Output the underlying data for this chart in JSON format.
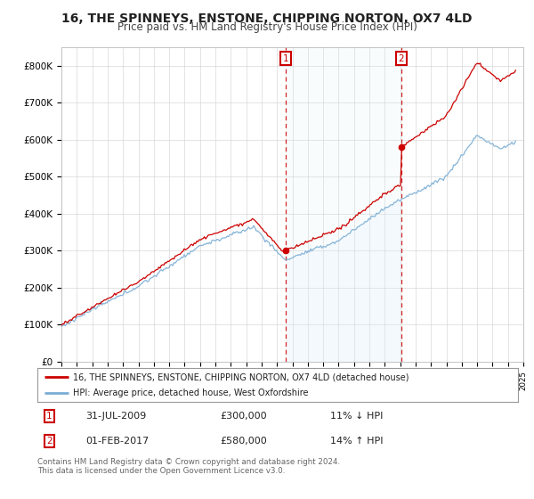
{
  "title": "16, THE SPINNEYS, ENSTONE, CHIPPING NORTON, OX7 4LD",
  "subtitle": "Price paid vs. HM Land Registry's House Price Index (HPI)",
  "legend_line1": "16, THE SPINNEYS, ENSTONE, CHIPPING NORTON, OX7 4LD (detached house)",
  "legend_line2": "HPI: Average price, detached house, West Oxfordshire",
  "annotation1_date": "31-JUL-2009",
  "annotation1_price": "£300,000",
  "annotation1_hpi": "11% ↓ HPI",
  "annotation2_date": "01-FEB-2017",
  "annotation2_price": "£580,000",
  "annotation2_hpi": "14% ↑ HPI",
  "footer": "Contains HM Land Registry data © Crown copyright and database right 2024.\nThis data is licensed under the Open Government Licence v3.0.",
  "line_color_property": "#cc0000",
  "line_color_hpi": "#7aadd4",
  "fill_color_hpi": "#ddeef8",
  "vline_color": "#cc0000",
  "annotation_box_color": "#cc0000",
  "background_color": "#ffffff",
  "grid_color": "#d0d0d0",
  "ylim": [
    0,
    850000
  ],
  "title_fontsize": 10,
  "subtitle_fontsize": 8.5,
  "tick_fontsize": 7.5,
  "purchase1_year": 2009.58,
  "purchase1_price": 300000,
  "purchase2_year": 2017.08,
  "purchase2_price": 580000
}
